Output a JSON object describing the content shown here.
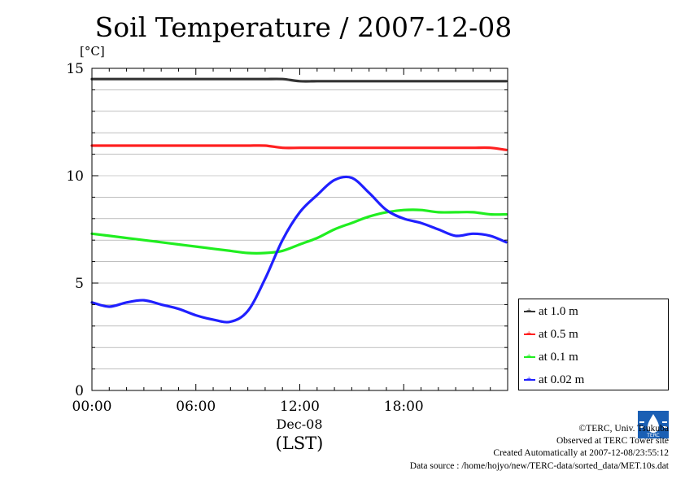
{
  "chart_data": {
    "type": "line",
    "title": "Soil Temperature / 2007-12-08",
    "ylabel": "[°C]",
    "xlabel": "(LST)",
    "x_date_label": "Dec-08",
    "ylim": [
      0,
      15
    ],
    "xlim": [
      "00:00",
      "24:00"
    ],
    "yticks": [
      "0",
      "5",
      "10",
      "15"
    ],
    "xticks": [
      "00:00",
      "06:00",
      "12:00",
      "18:00"
    ],
    "grid": true,
    "legend_position": "lower-right",
    "x": [
      "00:00",
      "01:00",
      "02:00",
      "03:00",
      "04:00",
      "05:00",
      "06:00",
      "07:00",
      "08:00",
      "09:00",
      "10:00",
      "11:00",
      "12:00",
      "13:00",
      "14:00",
      "15:00",
      "16:00",
      "17:00",
      "18:00",
      "19:00",
      "20:00",
      "21:00",
      "22:00",
      "23:00",
      "23:55"
    ],
    "series": [
      {
        "name": "at 1.0 m",
        "color": "#333333",
        "values": [
          14.5,
          14.5,
          14.5,
          14.5,
          14.5,
          14.5,
          14.5,
          14.5,
          14.5,
          14.5,
          14.5,
          14.5,
          14.4,
          14.4,
          14.4,
          14.4,
          14.4,
          14.4,
          14.4,
          14.4,
          14.4,
          14.4,
          14.4,
          14.4,
          14.4
        ]
      },
      {
        "name": "at 0.5 m",
        "color": "#ff2020",
        "values": [
          11.4,
          11.4,
          11.4,
          11.4,
          11.4,
          11.4,
          11.4,
          11.4,
          11.4,
          11.4,
          11.4,
          11.3,
          11.3,
          11.3,
          11.3,
          11.3,
          11.3,
          11.3,
          11.3,
          11.3,
          11.3,
          11.3,
          11.3,
          11.3,
          11.2
        ]
      },
      {
        "name": "at 0.1 m",
        "color": "#20ee20",
        "values": [
          7.3,
          7.2,
          7.1,
          7.0,
          6.9,
          6.8,
          6.7,
          6.6,
          6.5,
          6.4,
          6.4,
          6.5,
          6.8,
          7.1,
          7.5,
          7.8,
          8.1,
          8.3,
          8.4,
          8.4,
          8.3,
          8.3,
          8.3,
          8.2,
          8.2
        ]
      },
      {
        "name": "at 0.02 m",
        "color": "#2020ff",
        "values": [
          4.1,
          3.9,
          4.1,
          4.2,
          4.0,
          3.8,
          3.5,
          3.3,
          3.2,
          3.7,
          5.2,
          7.0,
          8.3,
          9.1,
          9.8,
          9.9,
          9.2,
          8.4,
          8.0,
          7.8,
          7.5,
          7.2,
          7.3,
          7.2,
          6.9
        ]
      }
    ]
  },
  "credits": {
    "copyright": "©TERC, Univ. Tsukuba",
    "observed": "Observed at TERC Tower site",
    "created": "Created Automatically at 2007-12-08/23:55:12",
    "source": "Data source : /home/hojyo/new/TERC-data/sorted_data/MET.10s.dat"
  },
  "logo_text": "TERC"
}
